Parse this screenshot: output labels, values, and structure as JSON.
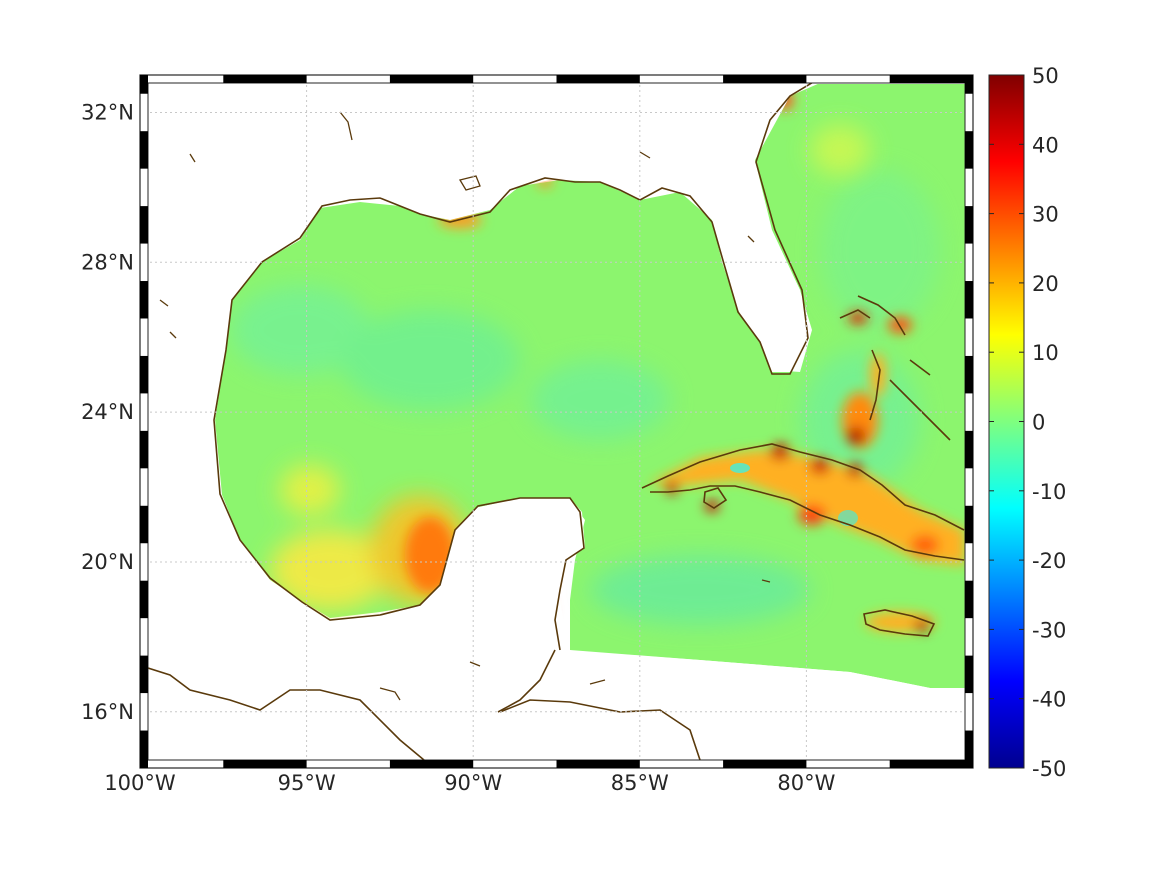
{
  "figure": {
    "type": "geographic map with colorbar",
    "region": "Gulf of Mexico and Caribbean"
  },
  "map": {
    "lon_labels": [
      "100°W",
      "95°W",
      "90°W",
      "85°W",
      "80°W"
    ],
    "lon_values": [
      -100,
      -95,
      -90,
      -85,
      -80
    ],
    "lat_labels": [
      "32°N",
      "28°N",
      "24°N",
      "20°N",
      "16°N"
    ],
    "lat_values": [
      32,
      28,
      24,
      20,
      16
    ],
    "lon_range": [
      -100,
      -75
    ],
    "lat_range": [
      14.5,
      33
    ],
    "grid": true,
    "coastline_color": "#5a3a0c",
    "land_color": "#ffffff"
  },
  "colorbar": {
    "colormap": "jet",
    "ticks": [
      "50",
      "40",
      "30",
      "20",
      "10",
      "0",
      "-10",
      "-20",
      "-30",
      "-40",
      "-50"
    ],
    "tick_values": [
      50,
      40,
      30,
      20,
      10,
      0,
      -10,
      -20,
      -30,
      -40,
      -50
    ],
    "range": [
      -50,
      50
    ]
  }
}
